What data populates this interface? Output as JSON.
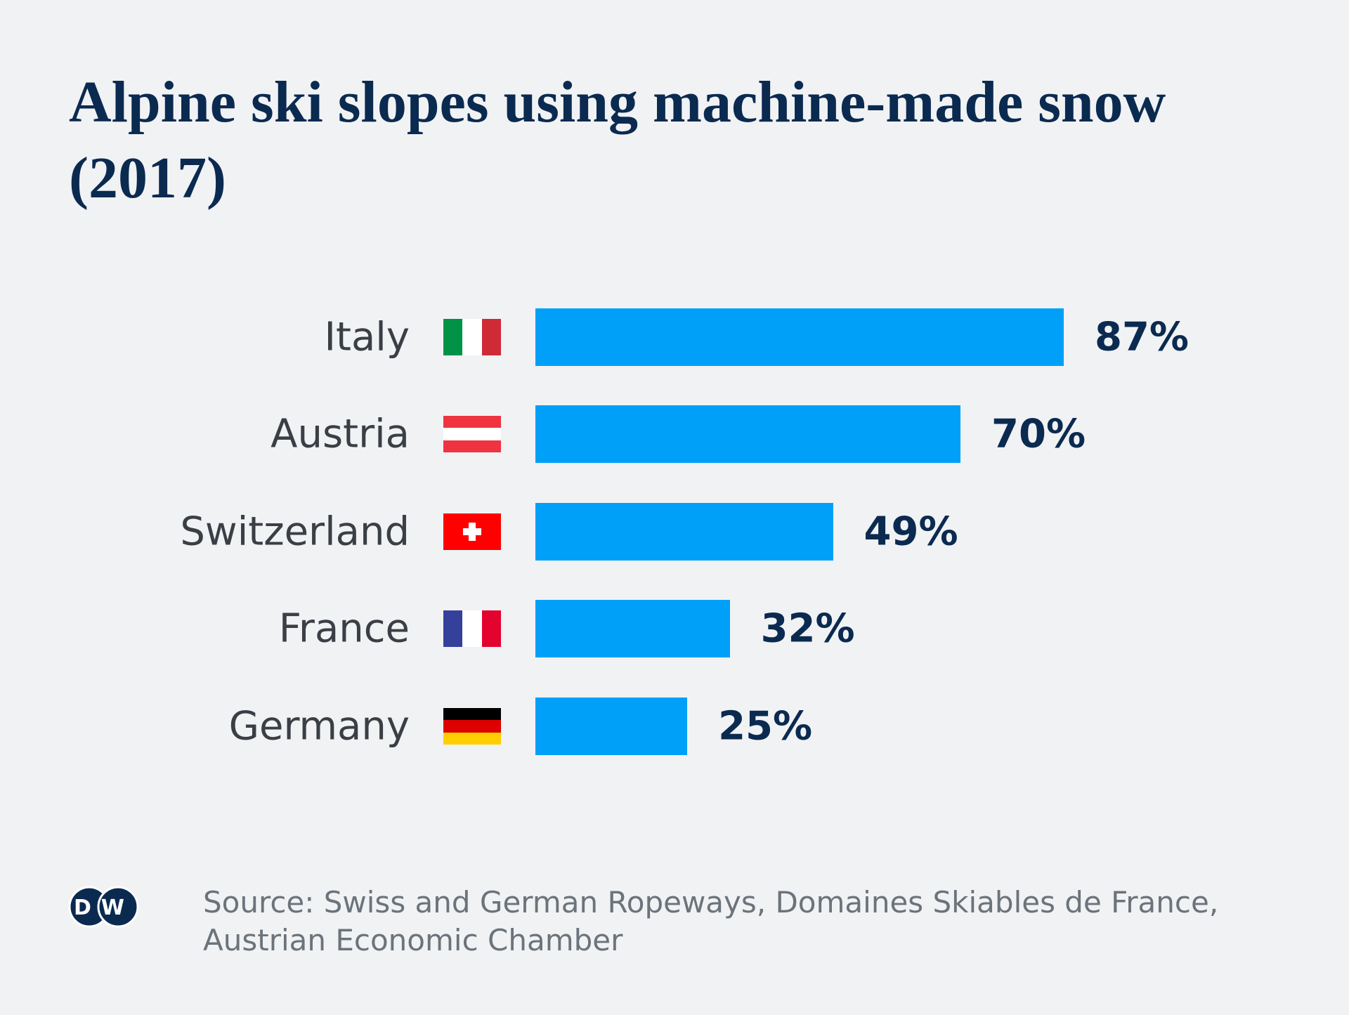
{
  "chart_data": {
    "type": "bar",
    "orientation": "horizontal",
    "title": "Alpine ski slopes using machine-made snow (2017)",
    "categories": [
      "Italy",
      "Austria",
      "Switzerland",
      "France",
      "Germany"
    ],
    "values": [
      87,
      70,
      49,
      32,
      25
    ],
    "value_labels": [
      "87%",
      "70%",
      "49%",
      "32%",
      "25%"
    ],
    "color": "#00a0f9",
    "source": "Source: Swiss and German Ropeways, Domaines Skiables de France, Austrian Economic Chamber",
    "logo": "DW"
  }
}
